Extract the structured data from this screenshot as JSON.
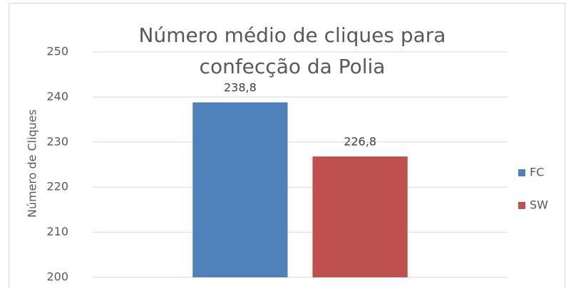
{
  "chart_data": {
    "type": "bar",
    "title": "Número médio de cliques para confecção da Polia",
    "y_label": "Número de Cliques",
    "categories": [
      null
    ],
    "series": [
      {
        "name": "FC",
        "color": "#4f81bd",
        "values": [
          238.8
        ],
        "value_labels": [
          "238,8"
        ]
      },
      {
        "name": "SW",
        "color": "#c0504d",
        "values": [
          226.8
        ],
        "value_labels": [
          "226,8"
        ]
      }
    ],
    "ylim": [
      200,
      250
    ],
    "yticks": [
      200,
      210,
      220,
      230,
      240,
      250
    ],
    "grid": true,
    "legend": "right"
  }
}
